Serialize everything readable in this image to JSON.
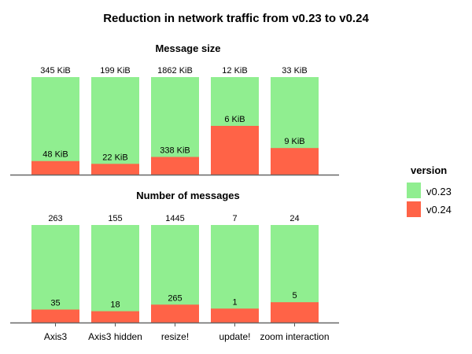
{
  "chart_data": {
    "type": "bar",
    "title": "Reduction in network traffic from v0.23 to v0.24",
    "categories": [
      "Axis3",
      "Axis3 hidden",
      "resize!",
      "update!",
      "zoom interaction"
    ],
    "legend": {
      "title": "version",
      "placement": "right",
      "entries": [
        {
          "name": "v0.23",
          "color": "#90EE90"
        },
        {
          "name": "v0.24",
          "color": "#FF6347"
        }
      ]
    },
    "panels": [
      {
        "title": "Message size",
        "unit": "KiB",
        "series": [
          {
            "name": "v0.23",
            "values": [
              345,
              199,
              1862,
              12,
              33
            ],
            "labels": [
              "345 KiB",
              "199 KiB",
              "1862 KiB",
              "12 KiB",
              "33 KiB"
            ]
          },
          {
            "name": "v0.24",
            "values": [
              48,
              22,
              338,
              6,
              9
            ],
            "labels": [
              "48 KiB",
              "22 KiB",
              "338 KiB",
              "6 KiB",
              "9 KiB"
            ]
          }
        ]
      },
      {
        "title": "Number of messages",
        "unit": "",
        "series": [
          {
            "name": "v0.23",
            "values": [
              263,
              155,
              1445,
              7,
              24
            ],
            "labels": [
              "263",
              "155",
              "1445",
              "7",
              "24"
            ]
          },
          {
            "name": "v0.24",
            "values": [
              35,
              18,
              265,
              1,
              5
            ],
            "labels": [
              "35",
              "18",
              "265",
              "1",
              "5"
            ]
          }
        ]
      }
    ],
    "normalization": "each category's v0.24 bar drawn relative to its v0.23 bar"
  }
}
